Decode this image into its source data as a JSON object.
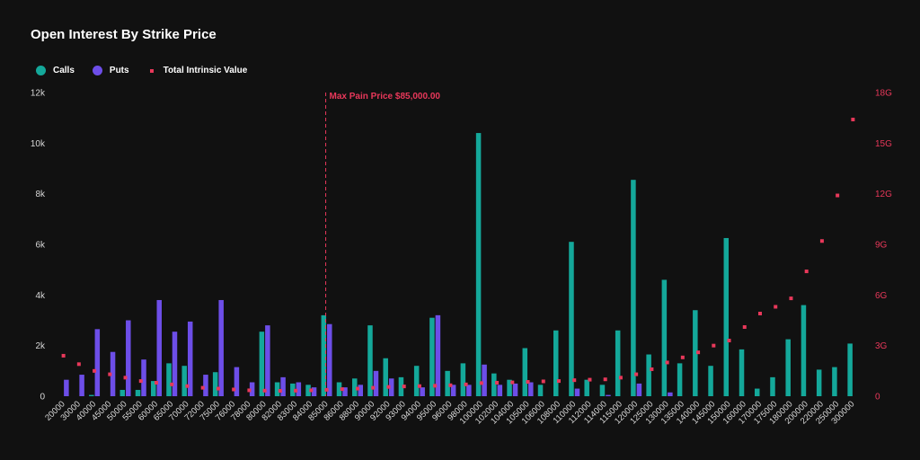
{
  "title": "Open Interest By Strike Price",
  "legend": [
    {
      "label": "Calls",
      "color": "#14a89a"
    },
    {
      "label": "Puts",
      "color": "#6d4ee8"
    },
    {
      "label": "Total Intrinsic Value",
      "color": "#e8385a"
    }
  ],
  "chart_data": {
    "type": "bar",
    "title": "Open Interest By Strike Price",
    "categories": [
      "20000",
      "30000",
      "40000",
      "45000",
      "50000",
      "55000",
      "60000",
      "65000",
      "70000",
      "72000",
      "75000",
      "76000",
      "78000",
      "80000",
      "82000",
      "83000",
      "84000",
      "85000",
      "86000",
      "88000",
      "90000",
      "92000",
      "93000",
      "94000",
      "95000",
      "96000",
      "98000",
      "100000",
      "102000",
      "104000",
      "105000",
      "106000",
      "108000",
      "110000",
      "112000",
      "114000",
      "115000",
      "120000",
      "125000",
      "130000",
      "135000",
      "140000",
      "145000",
      "150000",
      "160000",
      "170000",
      "175000",
      "180000",
      "200000",
      "220000",
      "250000",
      "300000"
    ],
    "series": [
      {
        "name": "Calls",
        "axis": "left",
        "color": "#14a89a",
        "values": [
          0,
          0,
          50,
          0,
          250,
          250,
          600,
          1300,
          1200,
          0,
          950,
          0,
          0,
          2550,
          550,
          500,
          450,
          3200,
          550,
          700,
          2800,
          1500,
          750,
          1200,
          3100,
          1000,
          1300,
          10400,
          900,
          650,
          1900,
          450,
          2600,
          6100,
          650,
          450,
          2600,
          8550,
          1650,
          4600,
          1300,
          3400,
          1200,
          6250,
          1850,
          300,
          750,
          2250,
          3600,
          1050,
          1150,
          2080
        ]
      },
      {
        "name": "Puts",
        "axis": "left",
        "color": "#6d4ee8",
        "values": [
          650,
          850,
          2650,
          1750,
          3000,
          1450,
          3800,
          2550,
          2950,
          850,
          3800,
          1150,
          550,
          2800,
          750,
          550,
          350,
          2850,
          350,
          450,
          1000,
          700,
          0,
          350,
          3200,
          450,
          450,
          1250,
          450,
          500,
          550,
          0,
          0,
          300,
          0,
          50,
          0,
          500,
          0,
          150,
          0,
          0,
          0,
          0,
          0,
          0,
          0,
          0,
          0,
          0,
          0,
          0
        ]
      },
      {
        "name": "Total Intrinsic Value",
        "axis": "right",
        "color": "#e8385a",
        "values": [
          2.4,
          1.9,
          1.5,
          1.3,
          1.1,
          0.9,
          0.8,
          0.7,
          0.6,
          0.5,
          0.45,
          0.4,
          0.35,
          0.33,
          0.32,
          0.33,
          0.35,
          0.38,
          0.42,
          0.45,
          0.5,
          0.55,
          0.58,
          0.6,
          0.62,
          0.65,
          0.7,
          0.78,
          0.8,
          0.82,
          0.85,
          0.88,
          0.9,
          0.95,
          0.98,
          1.0,
          1.1,
          1.3,
          1.6,
          2.0,
          2.3,
          2.6,
          3.0,
          3.3,
          4.1,
          4.9,
          5.3,
          5.8,
          7.4,
          9.2,
          11.9,
          16.4
        ]
      }
    ],
    "y_left": {
      "min": 0,
      "max": 12000,
      "ticks": [
        "0",
        "2k",
        "4k",
        "6k",
        "8k",
        "10k",
        "12k"
      ]
    },
    "y_right": {
      "min": 0,
      "max": 18,
      "ticks": [
        "0",
        "3G",
        "6G",
        "9G",
        "12G",
        "15G",
        "18G"
      ]
    },
    "annotation": {
      "label": "Max Pain Price $85,000.00",
      "category": "85000"
    },
    "grid": false,
    "legend_position": "top-left"
  }
}
